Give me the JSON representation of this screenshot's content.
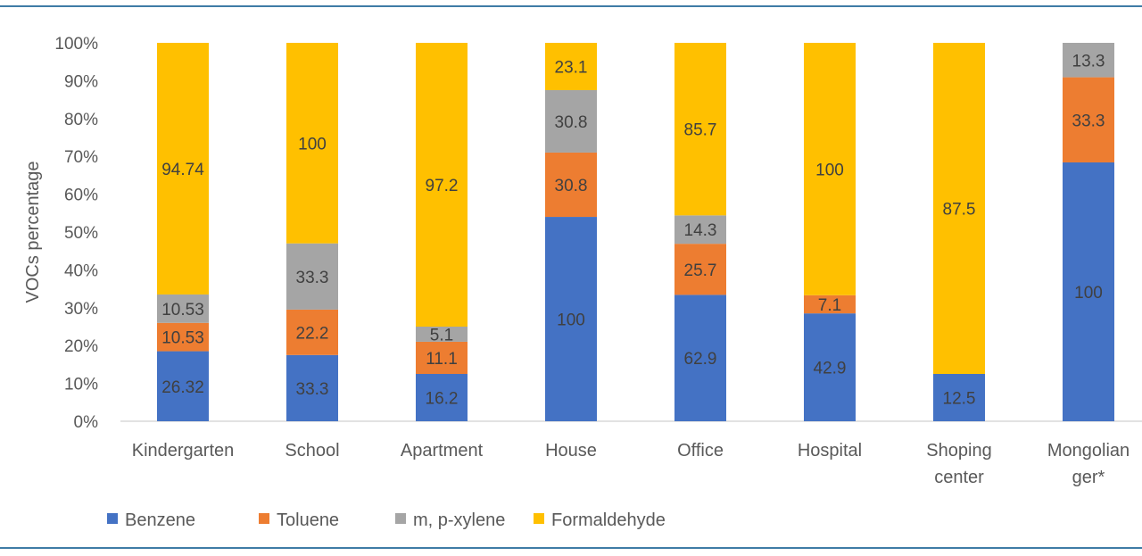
{
  "chart_data": {
    "type": "bar",
    "stacked": "percent",
    "ylabel": "VOCs percentage",
    "xlabel": "",
    "ylim": [
      0,
      100
    ],
    "yticks": [
      "0%",
      "10%",
      "20%",
      "30%",
      "40%",
      "50%",
      "60%",
      "70%",
      "80%",
      "90%",
      "100%"
    ],
    "categories": [
      "Kindergarten",
      "School",
      "Apartment",
      "House",
      "Office",
      "Hospital",
      "Shoping center",
      "Mongolian ger*"
    ],
    "category_lines": [
      [
        "Kindergarten"
      ],
      [
        "School"
      ],
      [
        "Apartment"
      ],
      [
        "House"
      ],
      [
        "Office"
      ],
      [
        "Hospital"
      ],
      [
        "Shoping",
        "center"
      ],
      [
        "Mongolian",
        "ger*"
      ]
    ],
    "series": [
      {
        "name": "Benzene",
        "color": "#4472c4",
        "values": [
          26.32,
          33.3,
          16.2,
          100,
          62.9,
          42.9,
          12.5,
          100
        ],
        "share": [
          18.5,
          17.5,
          12.5,
          54,
          33.4,
          28.5,
          12.5,
          68.4
        ]
      },
      {
        "name": "Toluene",
        "color": "#ed7d31",
        "values": [
          10.53,
          22.2,
          11.1,
          30.8,
          25.7,
          7.1,
          null,
          33.3
        ],
        "share": [
          7.5,
          12,
          8.5,
          17,
          13.5,
          4.8,
          0,
          22.5
        ]
      },
      {
        "name": "m, p-xylene",
        "color": "#a5a5a5",
        "values": [
          10.53,
          33.3,
          5.1,
          30.8,
          14.3,
          null,
          null,
          13.3
        ],
        "share": [
          7.5,
          17.5,
          4.0,
          16.5,
          7.5,
          0,
          0,
          9.1
        ]
      },
      {
        "name": "Formaldehyde",
        "color": "#ffc000",
        "values": [
          94.74,
          100,
          97.2,
          23.1,
          85.7,
          100,
          87.5,
          null
        ],
        "share": [
          66.5,
          53,
          75,
          12.5,
          45.6,
          66.7,
          87.5,
          0
        ]
      }
    ],
    "grid": false,
    "legend_position": "bottom-left"
  }
}
